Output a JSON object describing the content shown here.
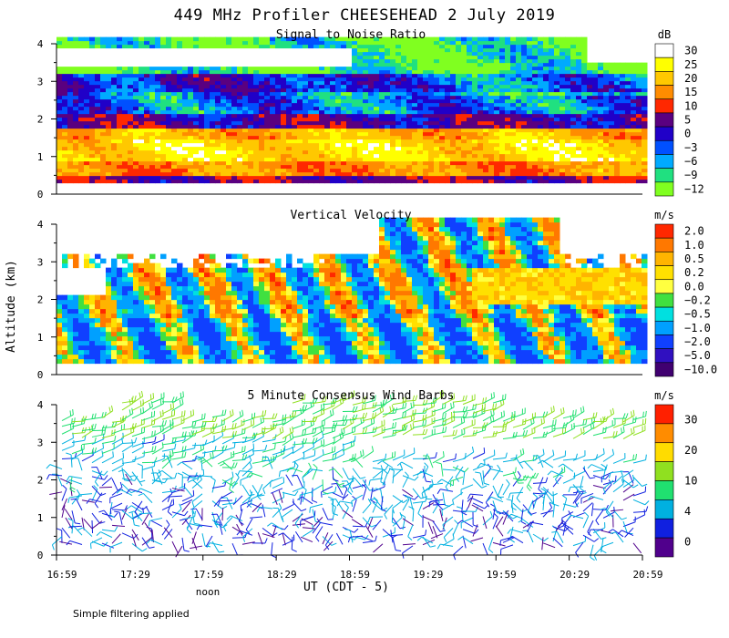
{
  "figure": {
    "title": "449 MHz Profiler CHEESEHEAD  2 July 2019",
    "ylabel": "Altitude (km)",
    "xlabel": "UT  (CDT - 5)",
    "noon_label": "noon",
    "footer": "Simple filtering applied",
    "x_ticks": [
      "16:59",
      "17:29",
      "17:59",
      "18:29",
      "18:59",
      "19:29",
      "19:59",
      "20:29",
      "20:59"
    ],
    "y_ticks": [
      "0",
      "1",
      "2",
      "3",
      "4"
    ]
  },
  "chart_data": [
    {
      "type": "heatmap",
      "title": "Signal to Noise Ratio",
      "xlabel": "UT  (CDT - 5)",
      "ylabel": "Altitude (km)",
      "x_range": [
        "16:59",
        "20:59"
      ],
      "ylim": [
        0,
        4
      ],
      "colorbar": {
        "unit": "dB",
        "labels": [
          "30",
          "25",
          "20",
          "15",
          "10",
          "5",
          "0",
          "−3",
          "−6",
          "−9",
          "−12"
        ],
        "colors": [
          "#ffffff",
          "#ffff00",
          "#ffc800",
          "#ff8c00",
          "#ff2800",
          "#5a0080",
          "#2000c8",
          "#0050ff",
          "#00aaff",
          "#20e080",
          "#80ff20"
        ]
      },
      "layers": [
        {
          "alt_km": [
            0.3,
            0.45
          ],
          "snr_db": 5
        },
        {
          "alt_km": [
            0.45,
            0.8
          ],
          "snr_db": 15
        },
        {
          "alt_km": [
            0.8,
            1.4
          ],
          "snr_db": 22
        },
        {
          "alt_km": [
            1.4,
            1.75
          ],
          "snr_db": 18
        },
        {
          "alt_km": [
            1.75,
            2.1
          ],
          "snr_db": 3
        },
        {
          "alt_km": [
            2.1,
            2.7
          ],
          "snr_db": -4
        },
        {
          "alt_km": [
            2.7,
            3.2
          ],
          "snr_db": 0
        },
        {
          "alt_km": [
            3.2,
            4.1
          ],
          "snr_db": -10
        }
      ]
    },
    {
      "type": "heatmap",
      "title": "Vertical Velocity",
      "xlabel": "UT  (CDT - 5)",
      "ylabel": "Altitude (km)",
      "x_range": [
        "16:59",
        "20:59"
      ],
      "ylim": [
        0,
        4
      ],
      "colorbar": {
        "unit": "m/s",
        "labels": [
          "2.0",
          "1.0",
          "0.5",
          "0.2",
          "0.0",
          "−0.2",
          "−0.5",
          "−1.0",
          "−2.0",
          "−5.0",
          "−10.0"
        ],
        "colors": [
          "#ff2800",
          "#ff7800",
          "#ffb400",
          "#ffe000",
          "#ffff40",
          "#40e040",
          "#00e0e0",
          "#00a0ff",
          "#1040ff",
          "#3010c0",
          "#400070"
        ]
      },
      "layers": [
        {
          "alt_km": [
            0.3,
            1.5
          ],
          "w_ms": -0.8
        },
        {
          "alt_km": [
            1.5,
            2.8
          ],
          "w_ms": -0.2
        },
        {
          "alt_km": [
            2.8,
            4.1
          ],
          "w_ms": -0.3
        }
      ]
    },
    {
      "type": "scatter",
      "title": "5 Minute Consensus Wind Barbs",
      "xlabel": "UT  (CDT - 5)",
      "ylabel": "Altitude (km)",
      "x_range": [
        "16:59",
        "20:59"
      ],
      "ylim": [
        0,
        4
      ],
      "colorbar": {
        "unit": "m/s",
        "labels": [
          "30",
          "20",
          "10",
          "4",
          "0"
        ],
        "colors": [
          "#ff2000",
          "#ff8c00",
          "#ffdc00",
          "#90e020",
          "#20e070",
          "#00b0e0",
          "#1020e0",
          "#50008c"
        ]
      },
      "speed_by_altitude": [
        {
          "alt_km": [
            0.2,
            1.0
          ],
          "speed_ms": 3
        },
        {
          "alt_km": [
            1.0,
            2.0
          ],
          "speed_ms": 4
        },
        {
          "alt_km": [
            2.0,
            3.0
          ],
          "speed_ms": 6
        },
        {
          "alt_km": [
            3.0,
            4.1
          ],
          "speed_ms": 10
        }
      ]
    }
  ]
}
